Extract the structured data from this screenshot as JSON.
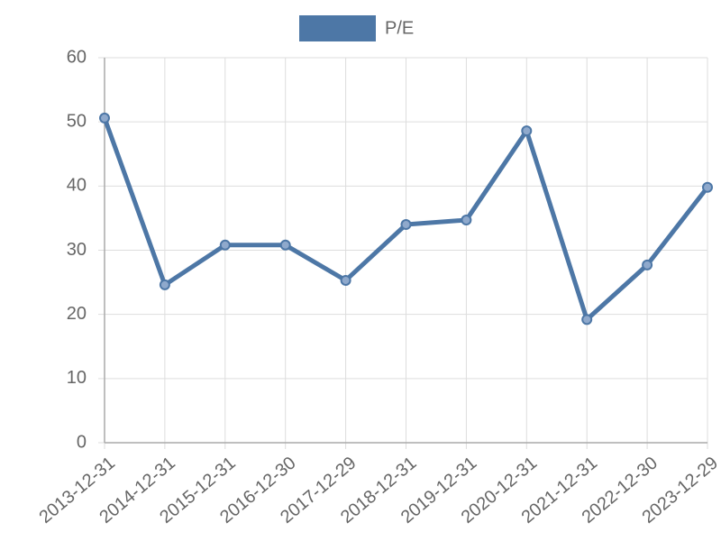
{
  "chart_data": {
    "type": "line",
    "categories": [
      "2013-12-31",
      "2014-12-31",
      "2015-12-31",
      "2016-12-30",
      "2017-12-29",
      "2018-12-31",
      "2019-12-31",
      "2020-12-31",
      "2021-12-31",
      "2022-12-30",
      "2023-12-29"
    ],
    "series": [
      {
        "name": "P/E",
        "color": "#4d77a6",
        "values": [
          50.6,
          24.6,
          30.8,
          30.8,
          25.3,
          34.0,
          34.7,
          48.6,
          19.2,
          27.7,
          39.8
        ]
      }
    ],
    "ylim": [
      0,
      60
    ],
    "yticks": [
      0,
      10,
      20,
      30,
      40,
      50,
      60
    ],
    "grid": true,
    "legend": "top"
  }
}
